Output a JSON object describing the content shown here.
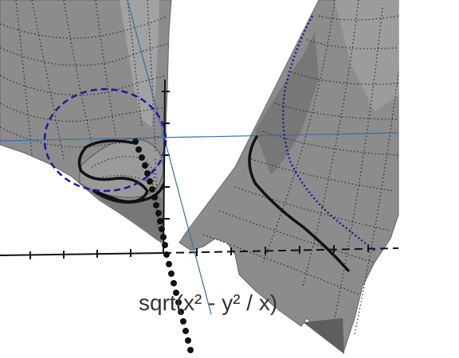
{
  "formula": "sqrt(x² - y² / x)",
  "colors": {
    "background": "#ffffff",
    "surface": "#8c8c8c",
    "surface_light": "#b4b4b4",
    "surface_dark": "#6e6e6e",
    "contour": "#2a2a2a",
    "axis": "#111111",
    "curve": "#111111",
    "dashed_curve": "#1a1aa0",
    "thin_line": "#3a6ea5",
    "label": "#333333"
  }
}
